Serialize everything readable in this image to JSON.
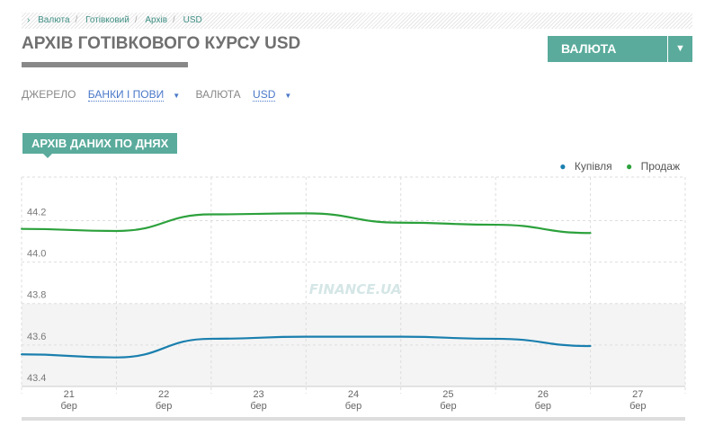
{
  "breadcrumb": [
    "Валюта",
    "Готівковий",
    "Архів",
    "USD"
  ],
  "title": "АРХІВ ГОТІВКОВОГО КУРСУ USD",
  "currency_button": "ВАЛЮТА",
  "filters": {
    "source_label": "ДЖЕРЕЛО",
    "source_value": "БАНКИ І ПОВИ",
    "currency_label": "ВАЛЮТА",
    "currency_value": "USD"
  },
  "section_tab": "АРХІВ ДАНИХ ПО ДНЯХ",
  "watermark": "FINANCE.UA",
  "chart_data": {
    "type": "line",
    "categories": [
      "21 бер",
      "22 бер",
      "23 бер",
      "24 бер",
      "25 бер",
      "26 бер",
      "27 бер"
    ],
    "x_ticks": [
      {
        "day": "21",
        "month": "бер"
      },
      {
        "day": "22",
        "month": "бер"
      },
      {
        "day": "23",
        "month": "бер"
      },
      {
        "day": "24",
        "month": "бер"
      },
      {
        "day": "25",
        "month": "бер"
      },
      {
        "day": "26",
        "month": "бер"
      },
      {
        "day": "27",
        "month": "бер"
      }
    ],
    "y_ticks": [
      43.4,
      43.6,
      43.8,
      44.0,
      44.2
    ],
    "ylim": [
      43.4,
      44.41
    ],
    "grid": true,
    "legend": "top-right",
    "series": [
      {
        "name": "Купівля",
        "color": "#1a7fae",
        "values": [
          43.555,
          43.54,
          43.63,
          43.64,
          43.64,
          43.63,
          43.595
        ]
      },
      {
        "name": "Продаж",
        "color": "#2ca13c",
        "values": [
          44.16,
          44.15,
          44.23,
          44.235,
          44.19,
          44.18,
          44.14
        ]
      }
    ]
  }
}
